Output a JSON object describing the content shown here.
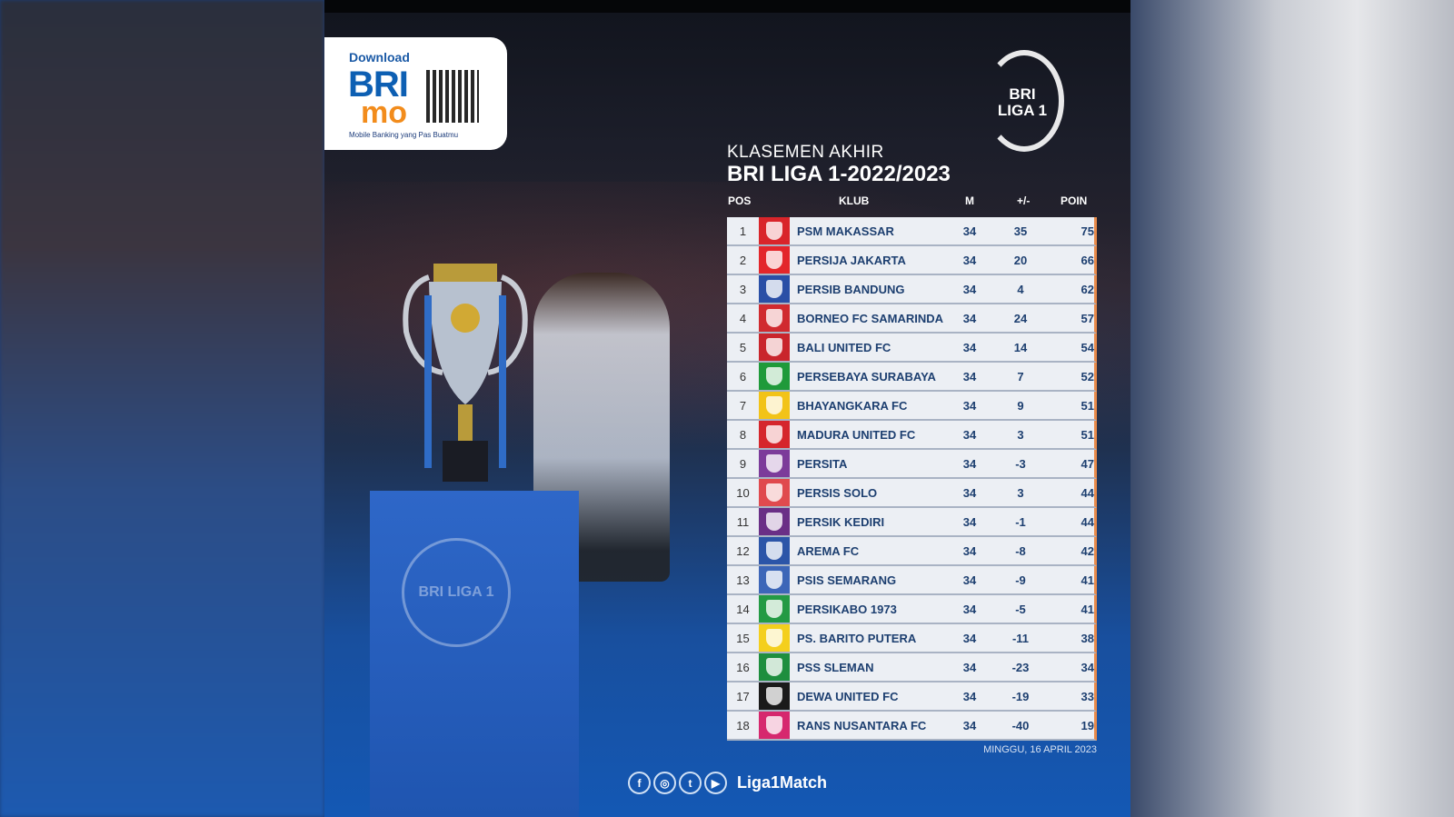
{
  "sponsor": {
    "download": "Download",
    "brand_1": "BRI",
    "brand_2": "mo",
    "tagline": "Mobile Banking yang Pas Buatmu"
  },
  "league_logo": {
    "text_1": "BRI",
    "text_2": "LIGA 1"
  },
  "pedestal_logo": "BRI LIGA 1",
  "title": {
    "line1": "KLASEMEN AKHIR",
    "line2": "BRI LIGA 1-2022/2023"
  },
  "columns": {
    "pos": "POS",
    "club": "KLUB",
    "m": "M",
    "gd": "+/-",
    "pts": "POIN"
  },
  "rows": [
    {
      "pos": "1",
      "club": "PSM MAKASSAR",
      "m": "34",
      "gd": "35",
      "pts": "75",
      "color": "#d9252a"
    },
    {
      "pos": "2",
      "club": "PERSIJA JAKARTA",
      "m": "34",
      "gd": "20",
      "pts": "66",
      "color": "#e3262b"
    },
    {
      "pos": "3",
      "club": "PERSIB BANDUNG",
      "m": "34",
      "gd": "4",
      "pts": "62",
      "color": "#2a4fa6"
    },
    {
      "pos": "4",
      "club": "BORNEO FC SAMARINDA",
      "m": "34",
      "gd": "24",
      "pts": "57",
      "color": "#d02a2f"
    },
    {
      "pos": "5",
      "club": "BALI UNITED FC",
      "m": "34",
      "gd": "14",
      "pts": "54",
      "color": "#c9252c"
    },
    {
      "pos": "6",
      "club": "PERSEBAYA SURABAYA",
      "m": "34",
      "gd": "7",
      "pts": "52",
      "color": "#1f9a3a"
    },
    {
      "pos": "7",
      "club": "BHAYANGKARA FC",
      "m": "34",
      "gd": "9",
      "pts": "51",
      "color": "#f2c318"
    },
    {
      "pos": "8",
      "club": "MADURA UNITED FC",
      "m": "34",
      "gd": "3",
      "pts": "51",
      "color": "#d5262c"
    },
    {
      "pos": "9",
      "club": "PERSITA",
      "m": "34",
      "gd": "-3",
      "pts": "47",
      "color": "#7c3b9a"
    },
    {
      "pos": "10",
      "club": "PERSIS SOLO",
      "m": "34",
      "gd": "3",
      "pts": "44",
      "color": "#e04a4e"
    },
    {
      "pos": "11",
      "club": "PERSIK KEDIRI",
      "m": "34",
      "gd": "-1",
      "pts": "44",
      "color": "#6a2f86"
    },
    {
      "pos": "12",
      "club": "AREMA FC",
      "m": "34",
      "gd": "-8",
      "pts": "42",
      "color": "#2c55a8"
    },
    {
      "pos": "13",
      "club": "PSIS SEMARANG",
      "m": "34",
      "gd": "-9",
      "pts": "41",
      "color": "#3d66b8"
    },
    {
      "pos": "14",
      "club": "PERSIKABO 1973",
      "m": "34",
      "gd": "-5",
      "pts": "41",
      "color": "#239a44"
    },
    {
      "pos": "15",
      "club": "PS. BARITO PUTERA",
      "m": "34",
      "gd": "-11",
      "pts": "38",
      "color": "#f4cf1d"
    },
    {
      "pos": "16",
      "club": "PSS SLEMAN",
      "m": "34",
      "gd": "-23",
      "pts": "34",
      "color": "#1e8e3e"
    },
    {
      "pos": "17",
      "club": "DEWA UNITED FC",
      "m": "34",
      "gd": "-19",
      "pts": "33",
      "color": "#1a1a1a"
    },
    {
      "pos": "18",
      "club": "RANS NUSANTARA FC",
      "m": "34",
      "gd": "-40",
      "pts": "19",
      "color": "#d6286e"
    }
  ],
  "date": "MINGGU, 16 APRIL 2023",
  "social": {
    "icons": [
      "facebook-icon",
      "instagram-icon",
      "twitter-icon",
      "youtube-icon"
    ],
    "handle": "Liga1Match"
  }
}
